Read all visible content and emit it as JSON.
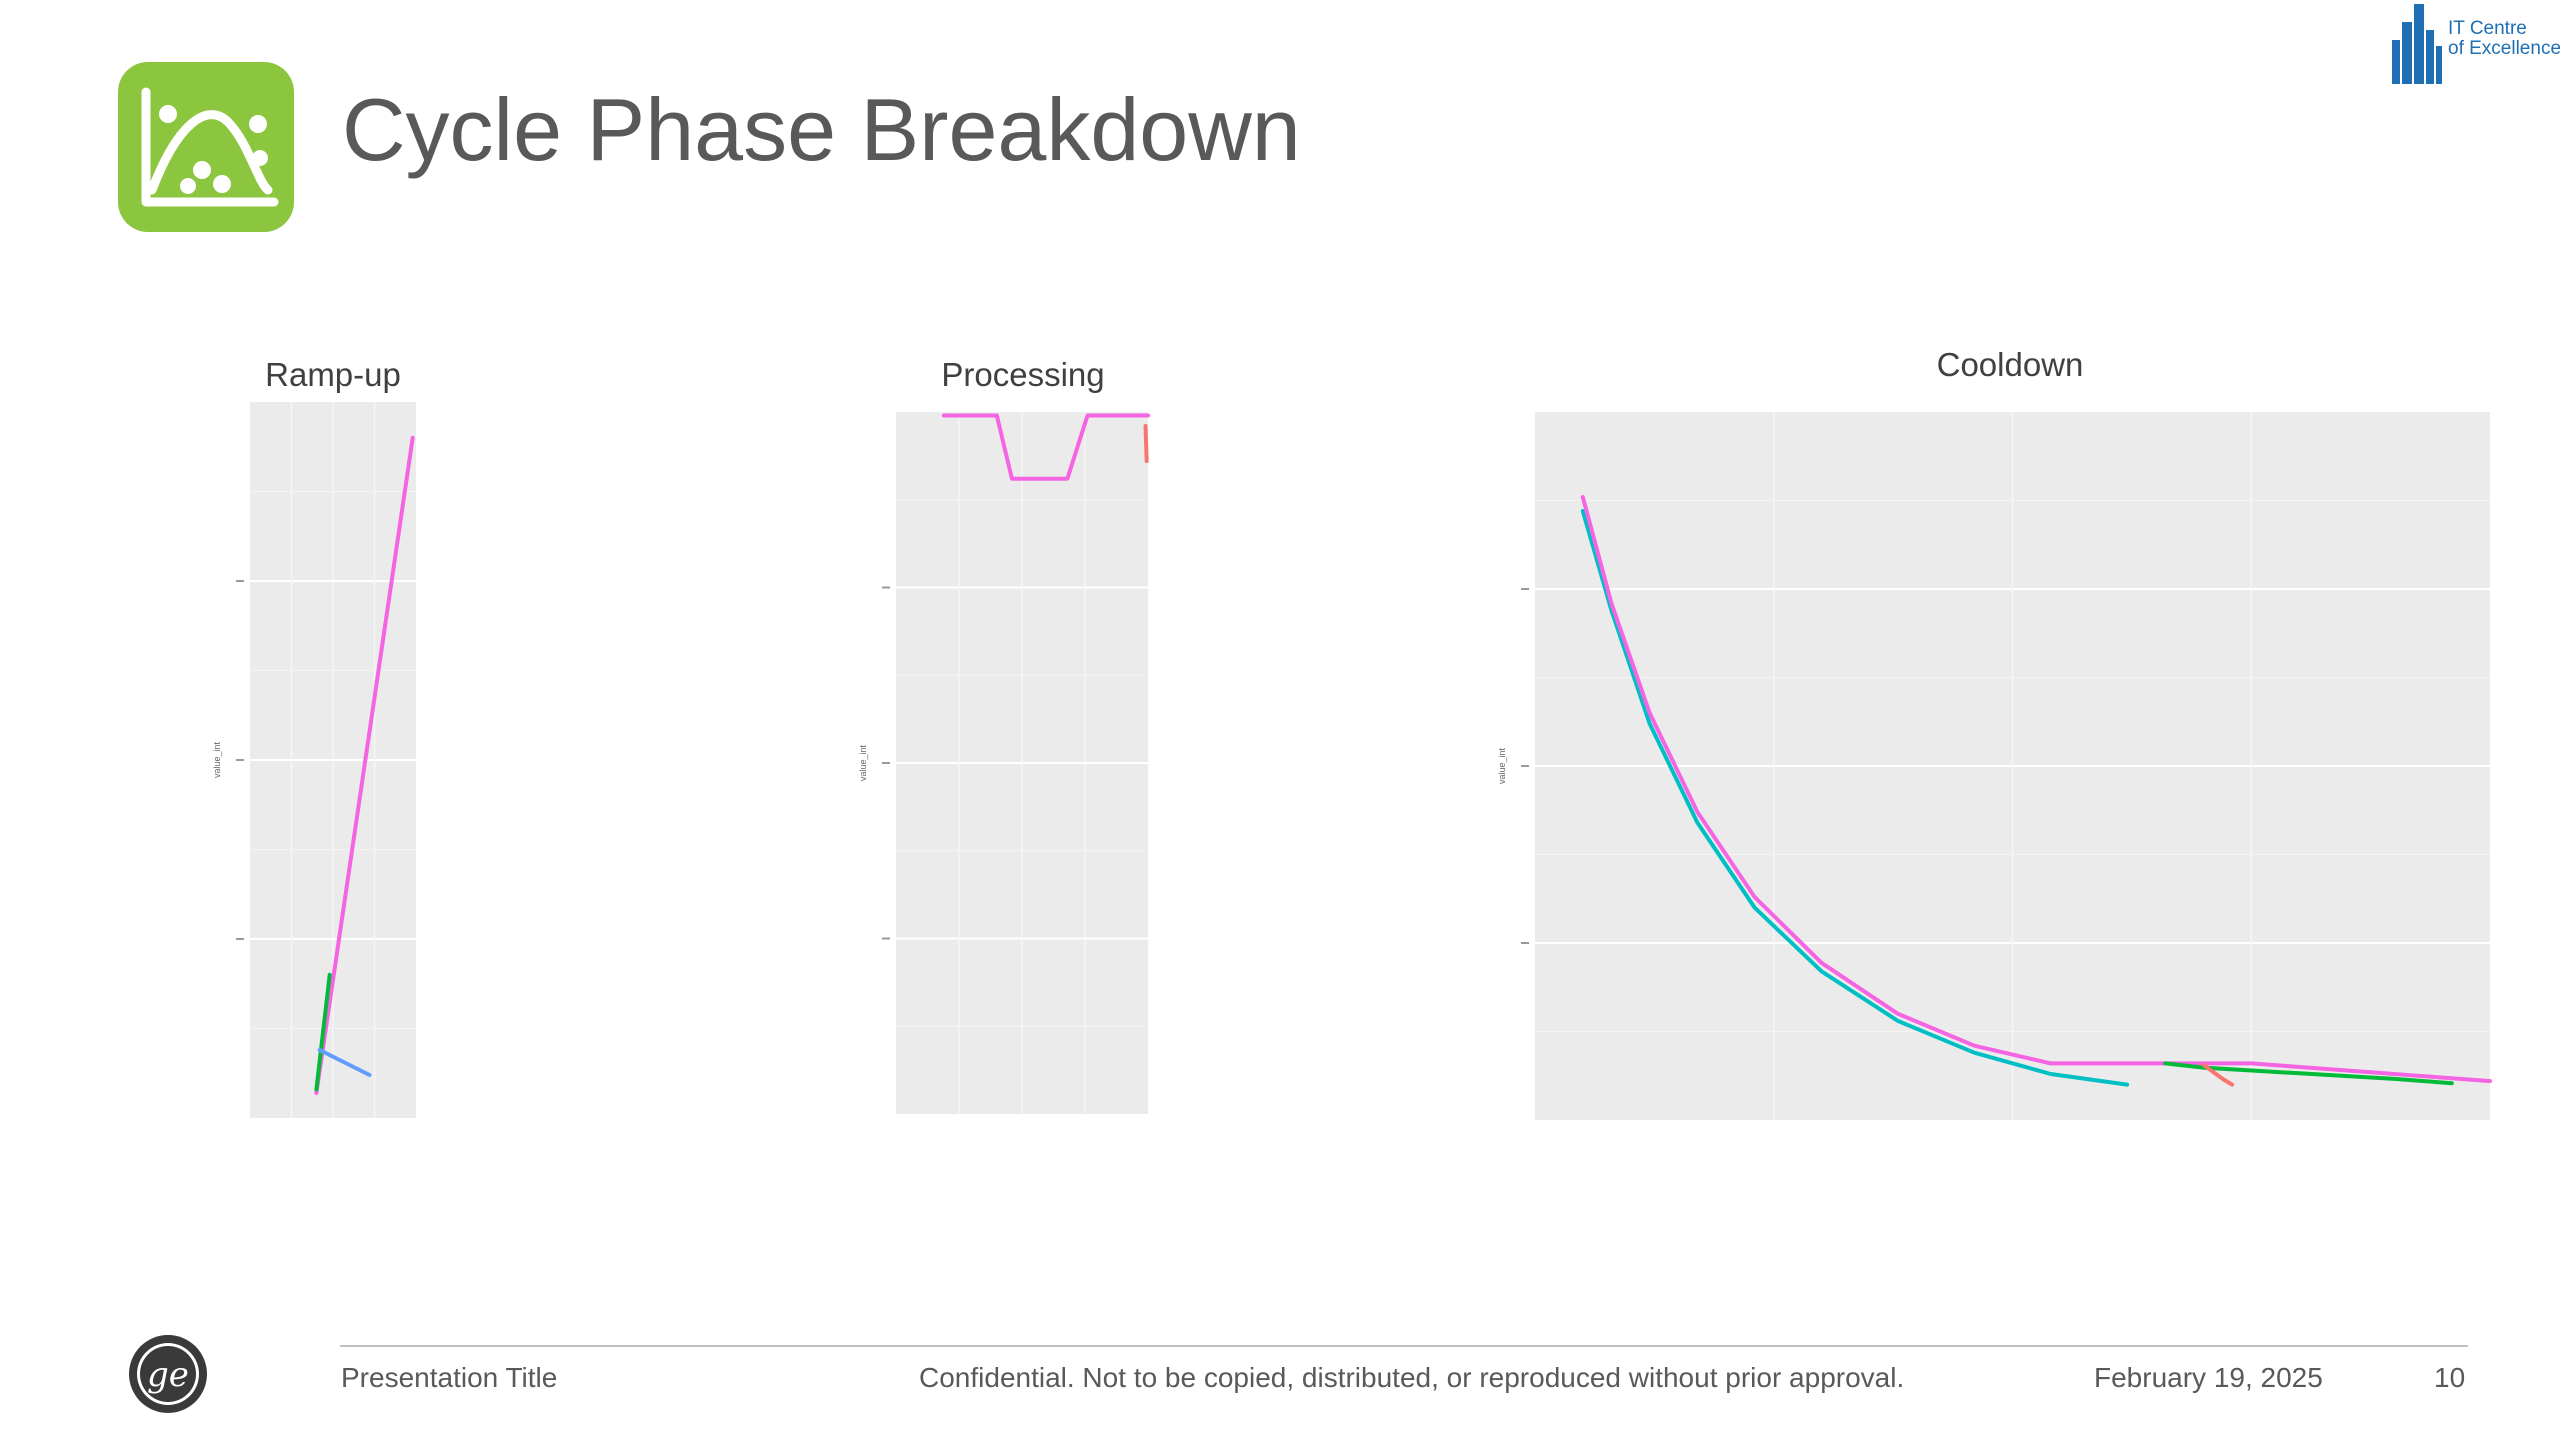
{
  "slide": {
    "title": "Cycle Phase Breakdown",
    "icon": "chart-analytics-icon",
    "accent_color": "#8cc63f",
    "logo_text": [
      "IT Centre",
      "of Excellence"
    ]
  },
  "footer": {
    "presentation_title": "Presentation Title",
    "confidential": "Confidential. Not to be copied, distributed, or reproduced without prior approval.",
    "date": "February 19, 2025",
    "page_number": "10",
    "logo": "ge-logo-icon"
  },
  "chart_data": [
    {
      "type": "line",
      "title": "Ramp-up",
      "xlabel": "",
      "ylabel": "value_int",
      "ylim": [
        0,
        1000
      ],
      "xlim": [
        0,
        100
      ],
      "grid": true,
      "series": [
        {
          "color": "#f564e3",
          "x": [
            40,
            98
          ],
          "y": [
            35,
            950
          ]
        },
        {
          "color": "#00ba38",
          "x": [
            40,
            48
          ],
          "y": [
            40,
            200
          ]
        },
        {
          "color": "#619cff",
          "x": [
            42,
            72
          ],
          "y": [
            95,
            60
          ]
        }
      ]
    },
    {
      "type": "line",
      "title": "Processing",
      "xlabel": "",
      "ylabel": "value_int",
      "ylim": [
        0,
        1000
      ],
      "xlim": [
        0,
        100
      ],
      "grid": true,
      "series": [
        {
          "color": "#f564e3",
          "x": [
            19,
            40,
            46,
            68,
            76,
            100
          ],
          "y": [
            995,
            995,
            905,
            905,
            995,
            995
          ]
        },
        {
          "color": "#f8766d",
          "x": [
            99,
            99.5
          ],
          "y": [
            980,
            930
          ]
        }
      ]
    },
    {
      "type": "line",
      "title": "Cooldown",
      "xlabel": "",
      "ylabel": "value_int",
      "ylim": [
        0,
        1000
      ],
      "xlim": [
        0,
        100
      ],
      "grid": true,
      "series": [
        {
          "color": "#00bfc4",
          "x": [
            5,
            8,
            12,
            17,
            23,
            30,
            38,
            46,
            54,
            62
          ],
          "y": [
            860,
            720,
            560,
            420,
            300,
            210,
            140,
            95,
            65,
            50
          ]
        },
        {
          "color": "#f564e3",
          "x": [
            5,
            8,
            12,
            17,
            23,
            30,
            38,
            46,
            54,
            60,
            75,
            90,
            100
          ],
          "y": [
            880,
            730,
            575,
            435,
            315,
            222,
            150,
            105,
            80,
            80,
            80,
            65,
            55
          ]
        },
        {
          "color": "#00ba38",
          "x": [
            66,
            70,
            80,
            90,
            96
          ],
          "y": [
            80,
            74,
            66,
            58,
            52
          ]
        },
        {
          "color": "#f8766d",
          "x": [
            70,
            72,
            73
          ],
          "y": [
            78,
            58,
            50
          ]
        }
      ]
    }
  ]
}
